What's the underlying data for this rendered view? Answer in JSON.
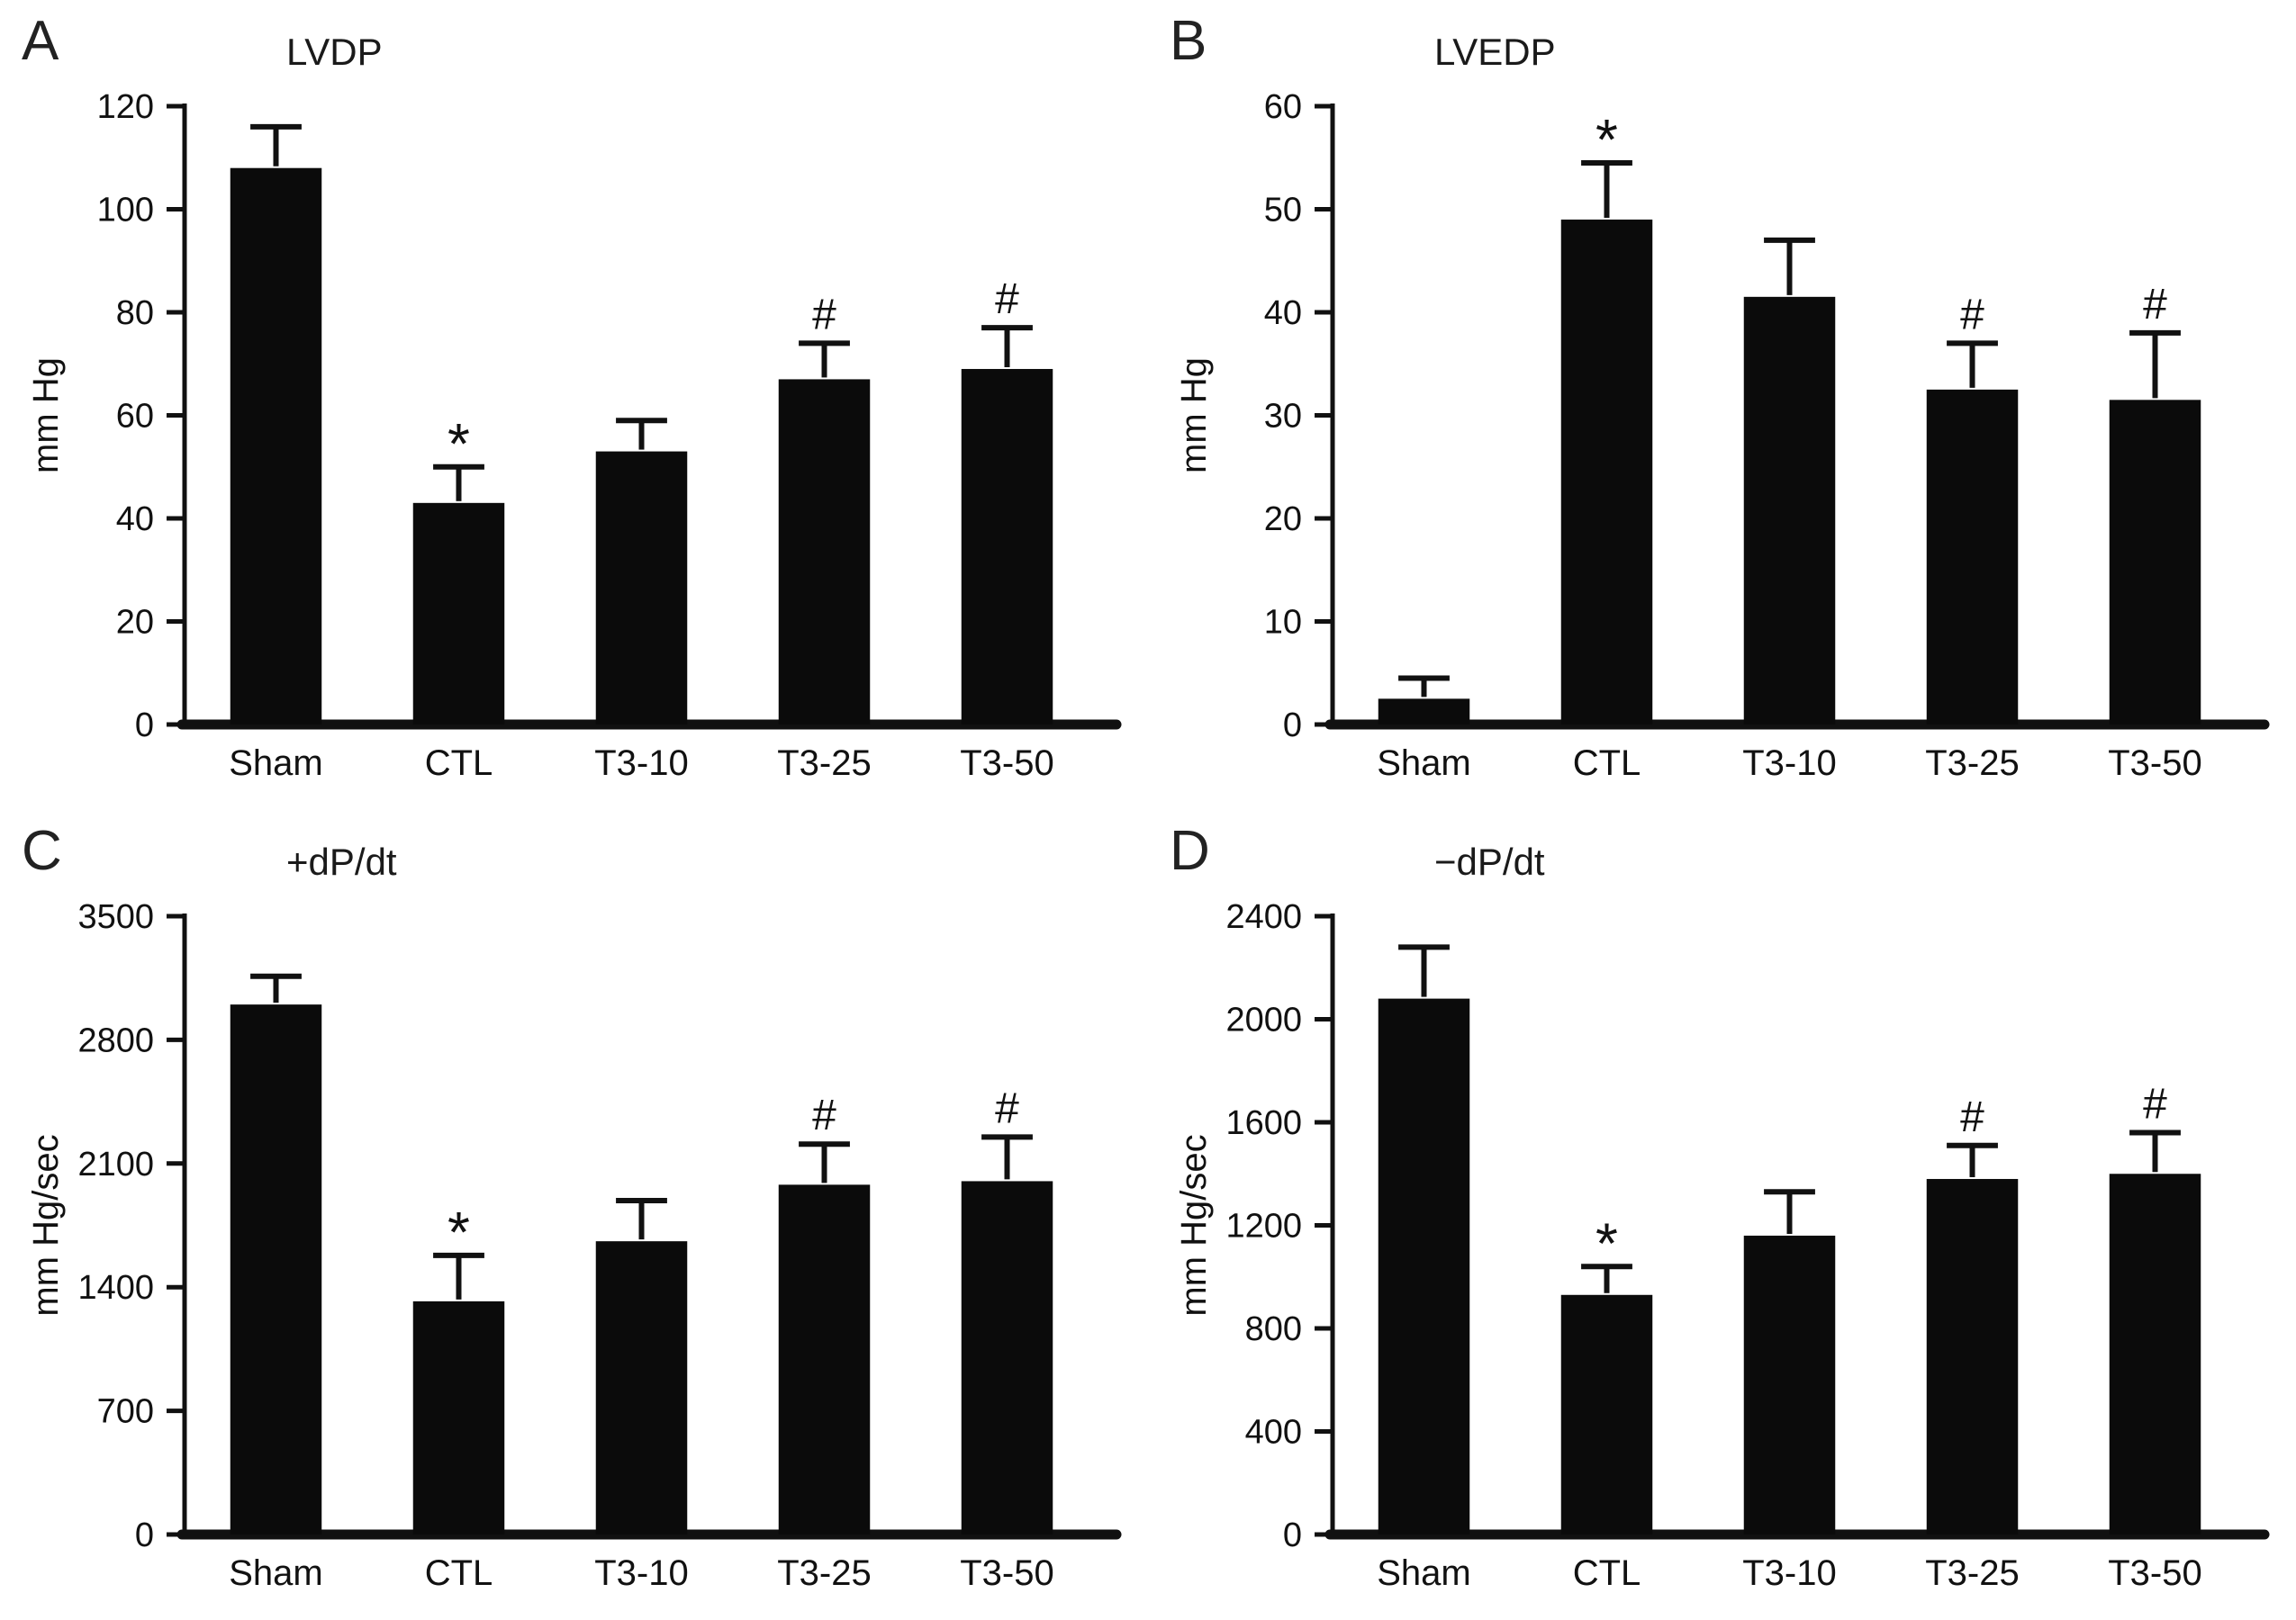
{
  "figure": {
    "background": "#ffffff",
    "bar_color": "#0b0b0b",
    "ink_color": "#111111",
    "annotation_star": "*",
    "annotation_hash": "#"
  },
  "chart_data": [
    {
      "type": "bar",
      "panel_label": "A",
      "title": "LVDP",
      "ylabel": "mm Hg",
      "ylim": [
        0,
        120
      ],
      "yticks": [
        0,
        20,
        40,
        60,
        80,
        100,
        120
      ],
      "categories": [
        "Sham",
        "CTL",
        "T3-10",
        "T3-25",
        "T3-50"
      ],
      "values": [
        108,
        43,
        53,
        67,
        69
      ],
      "errors": [
        8,
        7,
        6,
        7,
        8
      ],
      "annotations": [
        "",
        "*",
        "",
        "#",
        "#"
      ],
      "grid": "off",
      "legend": "none"
    },
    {
      "type": "bar",
      "panel_label": "B",
      "title": "LVEDP",
      "ylabel": "mm Hg",
      "ylim": [
        0,
        60
      ],
      "yticks": [
        0,
        10,
        20,
        30,
        40,
        50,
        60
      ],
      "categories": [
        "Sham",
        "CTL",
        "T3-10",
        "T3-25",
        "T3-50"
      ],
      "values": [
        2.5,
        49,
        41.5,
        32.5,
        31.5
      ],
      "errors": [
        2,
        5.5,
        5.5,
        4.5,
        6.5
      ],
      "annotations": [
        "",
        "*",
        "",
        "#",
        "#"
      ],
      "grid": "off",
      "legend": "none"
    },
    {
      "type": "bar",
      "panel_label": "C",
      "title": "+dP/dt",
      "ylabel": "mm Hg/sec",
      "ylim": [
        0,
        3500
      ],
      "yticks": [
        0,
        700,
        1400,
        2100,
        2800,
        3500
      ],
      "categories": [
        "Sham",
        "CTL",
        "T3-10",
        "T3-25",
        "T3-50"
      ],
      "values": [
        3000,
        1320,
        1660,
        1980,
        2000
      ],
      "errors": [
        160,
        260,
        230,
        230,
        250
      ],
      "annotations": [
        "",
        "*",
        "",
        "#",
        "#"
      ],
      "grid": "off",
      "legend": "none"
    },
    {
      "type": "bar",
      "panel_label": "D",
      "title": "−dP/dt",
      "ylabel": "mm Hg/sec",
      "ylim": [
        0,
        2400
      ],
      "yticks": [
        0,
        400,
        800,
        1200,
        1600,
        2000,
        2400
      ],
      "categories": [
        "Sham",
        "CTL",
        "T3-10",
        "T3-25",
        "T3-50"
      ],
      "values": [
        2080,
        930,
        1160,
        1380,
        1400
      ],
      "errors": [
        200,
        110,
        170,
        130,
        160
      ],
      "annotations": [
        "",
        "*",
        "",
        "#",
        "#"
      ],
      "grid": "off",
      "legend": "none"
    }
  ]
}
